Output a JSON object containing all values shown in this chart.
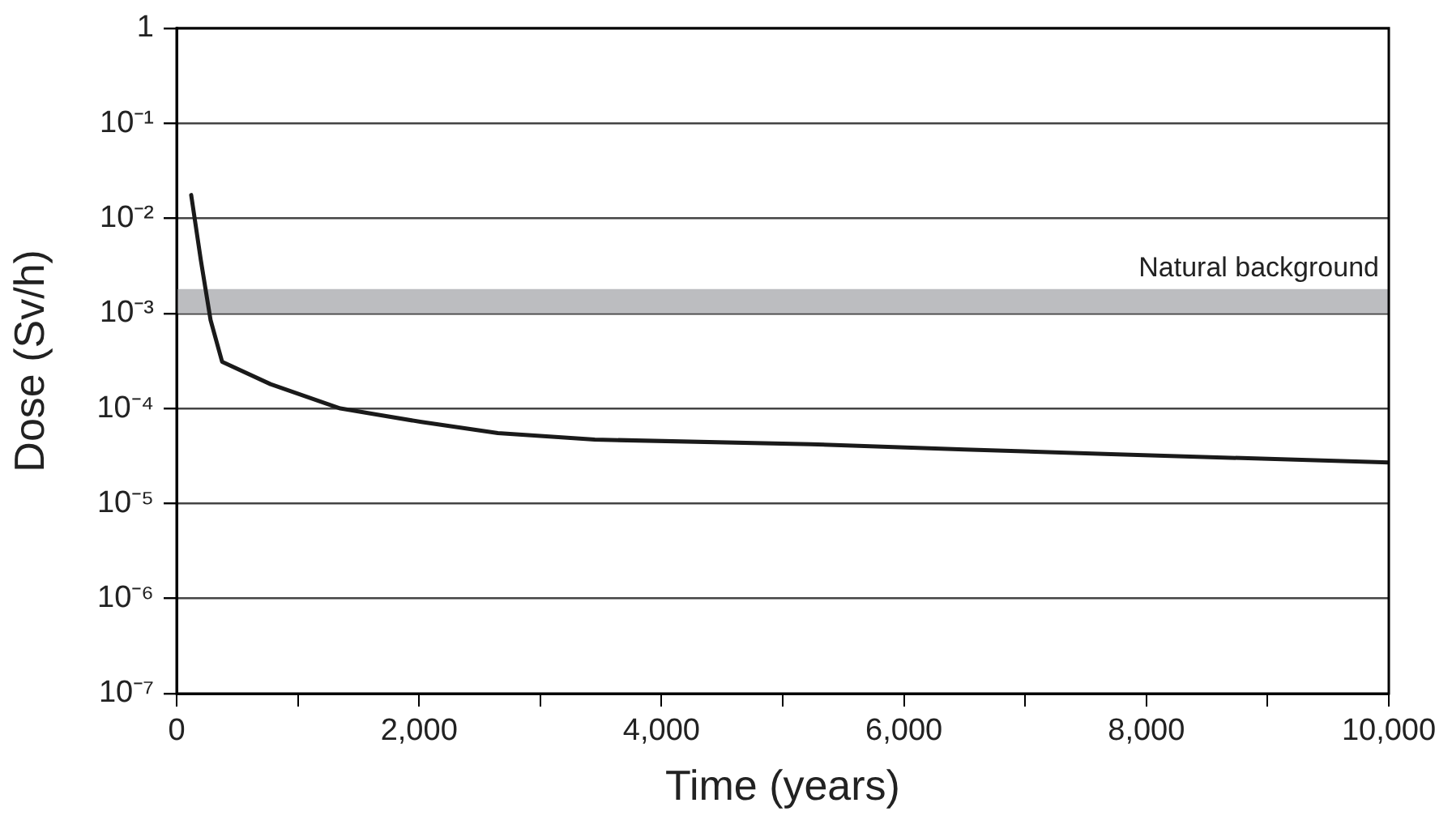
{
  "chart_data": {
    "type": "line",
    "xlabel": "Time (years)",
    "ylabel": "Dose (Sv/h)",
    "x": [
      120,
      200,
      280,
      375,
      775,
      1350,
      2020,
      2650,
      3450,
      5230,
      6500,
      7710,
      10000
    ],
    "series": [
      {
        "color": "#1a1a1a",
        "values": [
          0.0176,
          0.0036,
          0.00085,
          0.00031,
          0.00018,
          0.0001,
          7.2e-05,
          5.5e-05,
          4.7e-05,
          4.2e-05,
          3.7e-05,
          3.3e-05,
          2.7e-05
        ]
      }
    ],
    "log": "y",
    "xlim": [
      0,
      10000
    ],
    "ylim": [
      1e-07,
      1
    ],
    "xticks": [
      0,
      {
        "value": 1000,
        "label": null
      },
      {
        "value": 2000,
        "label": "2,000"
      },
      {
        "value": 3000,
        "label": null
      },
      {
        "value": 4000,
        "label": "4,000"
      },
      {
        "value": 5000,
        "label": null
      },
      {
        "value": 6000,
        "label": "6,000"
      },
      {
        "value": 7000,
        "label": null
      },
      {
        "value": 8000,
        "label": "8,000"
      },
      {
        "value": 9000,
        "label": null
      },
      {
        "value": 10000,
        "label": "10,000"
      }
    ],
    "yticks": [
      {
        "value": 1e-07,
        "label": "10⁻⁷"
      },
      {
        "value": 1e-06,
        "label": "10⁻⁶"
      },
      {
        "value": 1e-05,
        "label": "10⁻⁵"
      },
      {
        "value": 0.0001,
        "label": "10⁻⁴"
      },
      {
        "value": 0.001,
        "label": "10⁻³"
      },
      {
        "value": 0.01,
        "label": "10⁻²"
      },
      {
        "value": 0.1,
        "label": "10⁻¹"
      },
      1
    ],
    "bands": [
      {
        "axis": "y",
        "from": 0.001,
        "to": 0.0018,
        "label": "Natural background",
        "color": "#bcbdc0"
      }
    ],
    "grid": "y",
    "line_style": "solid",
    "marker": "none",
    "legend": false
  }
}
